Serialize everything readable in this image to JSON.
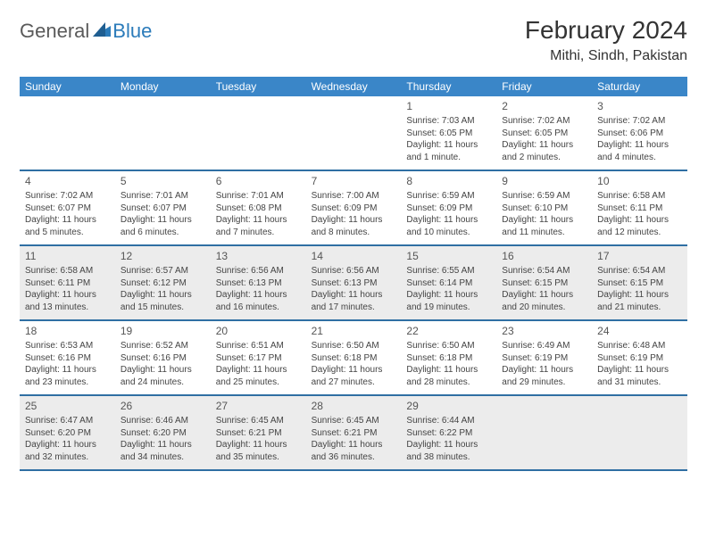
{
  "logo": {
    "word1": "General",
    "word2": "Blue",
    "mark_color": "#2b7bba",
    "text_gray": "#5a5a5a"
  },
  "title": "February 2024",
  "location": "Mithi, Sindh, Pakistan",
  "colors": {
    "header_bg": "#3a86c8",
    "header_text": "#ffffff",
    "row_divider": "#2f6fa3",
    "shaded_bg": "#ececec",
    "body_text": "#444444",
    "daynum_text": "#555555"
  },
  "day_names": [
    "Sunday",
    "Monday",
    "Tuesday",
    "Wednesday",
    "Thursday",
    "Friday",
    "Saturday"
  ],
  "weeks": [
    [
      {
        "blank": true
      },
      {
        "blank": true
      },
      {
        "blank": true
      },
      {
        "blank": true
      },
      {
        "day": "1",
        "sunrise": "Sunrise: 7:03 AM",
        "sunset": "Sunset: 6:05 PM",
        "daylight": "Daylight: 11 hours and 1 minute."
      },
      {
        "day": "2",
        "sunrise": "Sunrise: 7:02 AM",
        "sunset": "Sunset: 6:05 PM",
        "daylight": "Daylight: 11 hours and 2 minutes."
      },
      {
        "day": "3",
        "sunrise": "Sunrise: 7:02 AM",
        "sunset": "Sunset: 6:06 PM",
        "daylight": "Daylight: 11 hours and 4 minutes."
      }
    ],
    [
      {
        "day": "4",
        "sunrise": "Sunrise: 7:02 AM",
        "sunset": "Sunset: 6:07 PM",
        "daylight": "Daylight: 11 hours and 5 minutes."
      },
      {
        "day": "5",
        "sunrise": "Sunrise: 7:01 AM",
        "sunset": "Sunset: 6:07 PM",
        "daylight": "Daylight: 11 hours and 6 minutes."
      },
      {
        "day": "6",
        "sunrise": "Sunrise: 7:01 AM",
        "sunset": "Sunset: 6:08 PM",
        "daylight": "Daylight: 11 hours and 7 minutes."
      },
      {
        "day": "7",
        "sunrise": "Sunrise: 7:00 AM",
        "sunset": "Sunset: 6:09 PM",
        "daylight": "Daylight: 11 hours and 8 minutes."
      },
      {
        "day": "8",
        "sunrise": "Sunrise: 6:59 AM",
        "sunset": "Sunset: 6:09 PM",
        "daylight": "Daylight: 11 hours and 10 minutes."
      },
      {
        "day": "9",
        "sunrise": "Sunrise: 6:59 AM",
        "sunset": "Sunset: 6:10 PM",
        "daylight": "Daylight: 11 hours and 11 minutes."
      },
      {
        "day": "10",
        "sunrise": "Sunrise: 6:58 AM",
        "sunset": "Sunset: 6:11 PM",
        "daylight": "Daylight: 11 hours and 12 minutes."
      }
    ],
    [
      {
        "day": "11",
        "sunrise": "Sunrise: 6:58 AM",
        "sunset": "Sunset: 6:11 PM",
        "daylight": "Daylight: 11 hours and 13 minutes."
      },
      {
        "day": "12",
        "sunrise": "Sunrise: 6:57 AM",
        "sunset": "Sunset: 6:12 PM",
        "daylight": "Daylight: 11 hours and 15 minutes."
      },
      {
        "day": "13",
        "sunrise": "Sunrise: 6:56 AM",
        "sunset": "Sunset: 6:13 PM",
        "daylight": "Daylight: 11 hours and 16 minutes."
      },
      {
        "day": "14",
        "sunrise": "Sunrise: 6:56 AM",
        "sunset": "Sunset: 6:13 PM",
        "daylight": "Daylight: 11 hours and 17 minutes."
      },
      {
        "day": "15",
        "sunrise": "Sunrise: 6:55 AM",
        "sunset": "Sunset: 6:14 PM",
        "daylight": "Daylight: 11 hours and 19 minutes."
      },
      {
        "day": "16",
        "sunrise": "Sunrise: 6:54 AM",
        "sunset": "Sunset: 6:15 PM",
        "daylight": "Daylight: 11 hours and 20 minutes."
      },
      {
        "day": "17",
        "sunrise": "Sunrise: 6:54 AM",
        "sunset": "Sunset: 6:15 PM",
        "daylight": "Daylight: 11 hours and 21 minutes."
      }
    ],
    [
      {
        "day": "18",
        "sunrise": "Sunrise: 6:53 AM",
        "sunset": "Sunset: 6:16 PM",
        "daylight": "Daylight: 11 hours and 23 minutes."
      },
      {
        "day": "19",
        "sunrise": "Sunrise: 6:52 AM",
        "sunset": "Sunset: 6:16 PM",
        "daylight": "Daylight: 11 hours and 24 minutes."
      },
      {
        "day": "20",
        "sunrise": "Sunrise: 6:51 AM",
        "sunset": "Sunset: 6:17 PM",
        "daylight": "Daylight: 11 hours and 25 minutes."
      },
      {
        "day": "21",
        "sunrise": "Sunrise: 6:50 AM",
        "sunset": "Sunset: 6:18 PM",
        "daylight": "Daylight: 11 hours and 27 minutes."
      },
      {
        "day": "22",
        "sunrise": "Sunrise: 6:50 AM",
        "sunset": "Sunset: 6:18 PM",
        "daylight": "Daylight: 11 hours and 28 minutes."
      },
      {
        "day": "23",
        "sunrise": "Sunrise: 6:49 AM",
        "sunset": "Sunset: 6:19 PM",
        "daylight": "Daylight: 11 hours and 29 minutes."
      },
      {
        "day": "24",
        "sunrise": "Sunrise: 6:48 AM",
        "sunset": "Sunset: 6:19 PM",
        "daylight": "Daylight: 11 hours and 31 minutes."
      }
    ],
    [
      {
        "day": "25",
        "sunrise": "Sunrise: 6:47 AM",
        "sunset": "Sunset: 6:20 PM",
        "daylight": "Daylight: 11 hours and 32 minutes."
      },
      {
        "day": "26",
        "sunrise": "Sunrise: 6:46 AM",
        "sunset": "Sunset: 6:20 PM",
        "daylight": "Daylight: 11 hours and 34 minutes."
      },
      {
        "day": "27",
        "sunrise": "Sunrise: 6:45 AM",
        "sunset": "Sunset: 6:21 PM",
        "daylight": "Daylight: 11 hours and 35 minutes."
      },
      {
        "day": "28",
        "sunrise": "Sunrise: 6:45 AM",
        "sunset": "Sunset: 6:21 PM",
        "daylight": "Daylight: 11 hours and 36 minutes."
      },
      {
        "day": "29",
        "sunrise": "Sunrise: 6:44 AM",
        "sunset": "Sunset: 6:22 PM",
        "daylight": "Daylight: 11 hours and 38 minutes."
      },
      {
        "blank": true
      },
      {
        "blank": true
      }
    ]
  ],
  "shaded_rows": [
    2,
    4
  ]
}
